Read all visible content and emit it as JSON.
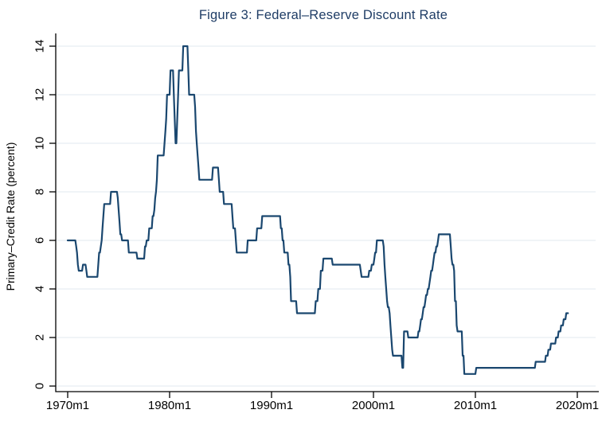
{
  "chart_data": {
    "type": "line",
    "title": "Figure 3: Federal–Reserve Discount Rate",
    "ylabel": "Primary–Credit Rate (percent)",
    "xlabel": "",
    "legend": "none",
    "grid": "horizontal",
    "resolution": "monthly",
    "x_ticks": [
      "1970m1",
      "1980m1",
      "1990m1",
      "2000m1",
      "2010m1",
      "2020m1"
    ],
    "y_ticks": [
      0,
      2,
      4,
      6,
      8,
      10,
      12,
      14
    ],
    "ylim": [
      0,
      14
    ],
    "xlim": [
      "1970m1",
      "2020m1"
    ],
    "series_end": [
      2019,
      2
    ],
    "steps": [
      [
        1970,
        1,
        6
      ],
      [
        1970,
        11,
        5.75
      ],
      [
        1970,
        12,
        5.5
      ],
      [
        1971,
        1,
        5
      ],
      [
        1971,
        2,
        4.75
      ],
      [
        1971,
        7,
        5
      ],
      [
        1971,
        11,
        4.75
      ],
      [
        1971,
        12,
        4.5
      ],
      [
        1973,
        1,
        5
      ],
      [
        1973,
        2,
        5.5
      ],
      [
        1973,
        4,
        5.75
      ],
      [
        1973,
        5,
        6
      ],
      [
        1973,
        6,
        6.5
      ],
      [
        1973,
        7,
        7
      ],
      [
        1973,
        8,
        7.5
      ],
      [
        1974,
        4,
        8
      ],
      [
        1974,
        12,
        7.75
      ],
      [
        1975,
        1,
        7.25
      ],
      [
        1975,
        2,
        6.75
      ],
      [
        1975,
        3,
        6.25
      ],
      [
        1975,
        5,
        6
      ],
      [
        1976,
        1,
        5.5
      ],
      [
        1976,
        11,
        5.25
      ],
      [
        1977,
        8,
        5.75
      ],
      [
        1977,
        10,
        6
      ],
      [
        1978,
        1,
        6.5
      ],
      [
        1978,
        5,
        7
      ],
      [
        1978,
        7,
        7.25
      ],
      [
        1978,
        8,
        7.75
      ],
      [
        1978,
        9,
        8
      ],
      [
        1978,
        10,
        8.5
      ],
      [
        1978,
        11,
        9.5
      ],
      [
        1979,
        7,
        10
      ],
      [
        1979,
        8,
        10.5
      ],
      [
        1979,
        9,
        11
      ],
      [
        1979,
        10,
        12
      ],
      [
        1980,
        2,
        13
      ],
      [
        1980,
        6,
        12
      ],
      [
        1980,
        7,
        11
      ],
      [
        1980,
        8,
        10
      ],
      [
        1980,
        10,
        11
      ],
      [
        1980,
        11,
        12
      ],
      [
        1980,
        12,
        13
      ],
      [
        1981,
        5,
        14
      ],
      [
        1981,
        11,
        13
      ],
      [
        1981,
        12,
        12
      ],
      [
        1982,
        7,
        11.5
      ],
      [
        1982,
        8,
        10.5
      ],
      [
        1982,
        9,
        10
      ],
      [
        1982,
        10,
        9.5
      ],
      [
        1982,
        11,
        9
      ],
      [
        1982,
        12,
        8.5
      ],
      [
        1984,
        4,
        9
      ],
      [
        1984,
        11,
        8.5
      ],
      [
        1984,
        12,
        8
      ],
      [
        1985,
        5,
        7.5
      ],
      [
        1986,
        3,
        7
      ],
      [
        1986,
        4,
        6.5
      ],
      [
        1986,
        7,
        6
      ],
      [
        1986,
        8,
        5.5
      ],
      [
        1987,
        9,
        6
      ],
      [
        1988,
        8,
        6.5
      ],
      [
        1989,
        2,
        7
      ],
      [
        1990,
        12,
        6.5
      ],
      [
        1991,
        2,
        6
      ],
      [
        1991,
        4,
        5.5
      ],
      [
        1991,
        9,
        5
      ],
      [
        1991,
        11,
        4.5
      ],
      [
        1991,
        12,
        3.5
      ],
      [
        1992,
        7,
        3
      ],
      [
        1994,
        5,
        3.5
      ],
      [
        1994,
        8,
        4
      ],
      [
        1994,
        11,
        4.75
      ],
      [
        1995,
        2,
        5.25
      ],
      [
        1996,
        1,
        5
      ],
      [
        1998,
        10,
        4.75
      ],
      [
        1998,
        11,
        4.5
      ],
      [
        1999,
        8,
        4.75
      ],
      [
        1999,
        11,
        5
      ],
      [
        2000,
        2,
        5.25
      ],
      [
        2000,
        3,
        5.5
      ],
      [
        2000,
        5,
        6
      ],
      [
        2001,
        1,
        5.75
      ],
      [
        2001,
        2,
        5
      ],
      [
        2001,
        3,
        4.5
      ],
      [
        2001,
        4,
        4
      ],
      [
        2001,
        5,
        3.5
      ],
      [
        2001,
        6,
        3.25
      ],
      [
        2001,
        8,
        3
      ],
      [
        2001,
        9,
        2.5
      ],
      [
        2001,
        10,
        2
      ],
      [
        2001,
        11,
        1.5
      ],
      [
        2001,
        12,
        1.25
      ],
      [
        2002,
        11,
        0.75
      ],
      [
        2003,
        1,
        2.25
      ],
      [
        2003,
        6,
        2
      ],
      [
        2004,
        6,
        2.25
      ],
      [
        2004,
        8,
        2.5
      ],
      [
        2004,
        9,
        2.75
      ],
      [
        2004,
        11,
        3
      ],
      [
        2004,
        12,
        3.25
      ],
      [
        2005,
        2,
        3.5
      ],
      [
        2005,
        3,
        3.75
      ],
      [
        2005,
        5,
        4
      ],
      [
        2005,
        7,
        4.25
      ],
      [
        2005,
        8,
        4.5
      ],
      [
        2005,
        9,
        4.75
      ],
      [
        2005,
        11,
        5
      ],
      [
        2005,
        12,
        5.25
      ],
      [
        2006,
        1,
        5.5
      ],
      [
        2006,
        3,
        5.75
      ],
      [
        2006,
        5,
        6
      ],
      [
        2006,
        6,
        6.25
      ],
      [
        2007,
        8,
        5.75
      ],
      [
        2007,
        9,
        5.25
      ],
      [
        2007,
        10,
        5
      ],
      [
        2007,
        12,
        4.75
      ],
      [
        2008,
        1,
        3.5
      ],
      [
        2008,
        3,
        2.5
      ],
      [
        2008,
        4,
        2.25
      ],
      [
        2008,
        10,
        1.25
      ],
      [
        2008,
        12,
        0.5
      ],
      [
        2010,
        2,
        0.75
      ],
      [
        2015,
        12,
        1
      ],
      [
        2016,
        12,
        1.25
      ],
      [
        2017,
        3,
        1.5
      ],
      [
        2017,
        6,
        1.75
      ],
      [
        2017,
        12,
        2
      ],
      [
        2018,
        3,
        2.25
      ],
      [
        2018,
        6,
        2.5
      ],
      [
        2018,
        9,
        2.75
      ],
      [
        2018,
        12,
        3
      ]
    ],
    "colors": {
      "line": "#1a476f",
      "grid": "#e8edf2",
      "axis": "#000000",
      "title_text": "#1f3d66"
    }
  }
}
